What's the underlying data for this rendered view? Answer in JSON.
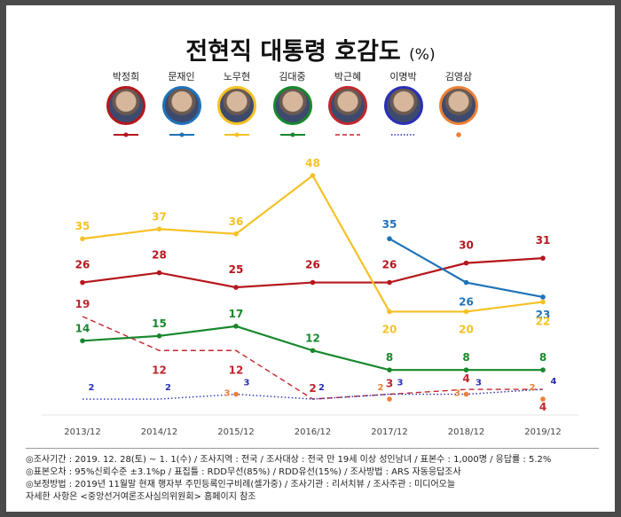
{
  "header": {
    "title": "전현직 대통령 호감도",
    "unit": "(%)"
  },
  "chart_data": {
    "type": "line",
    "x": [
      "2013/12",
      "2014/12",
      "2015/12",
      "2016/12",
      "2017/12",
      "2018/12",
      "2019/12"
    ],
    "ylim": [
      0,
      50
    ],
    "grid": false,
    "series": [
      {
        "name": "박정희",
        "color": "#b5171c",
        "style": "solid",
        "values": [
          26,
          28,
          25,
          26,
          26,
          30,
          31
        ]
      },
      {
        "name": "문재인",
        "color": "#1e73b9",
        "style": "solid",
        "values": [
          null,
          null,
          null,
          null,
          35,
          26,
          23
        ]
      },
      {
        "name": "노무현",
        "color": "#f5c125",
        "style": "solid",
        "values": [
          35,
          37,
          36,
          48,
          20,
          20,
          22
        ]
      },
      {
        "name": "김대중",
        "color": "#17882c",
        "style": "solid",
        "values": [
          14,
          15,
          17,
          12,
          8,
          8,
          8
        ]
      },
      {
        "name": "박근혜",
        "color": "#c0272d",
        "style": "dashed",
        "values": [
          19,
          12,
          12,
          2,
          3,
          4,
          4
        ]
      },
      {
        "name": "이명박",
        "color": "#2a2fb6",
        "style": "dotted",
        "values": [
          2,
          2,
          3,
          2,
          3,
          3,
          4
        ]
      },
      {
        "name": "김영삼",
        "color": "#ec8036",
        "style": "dots",
        "values": [
          null,
          null,
          3,
          null,
          2,
          3,
          2
        ]
      }
    ]
  },
  "notes": [
    "◎조사기간 : 2019. 12. 28(토) ~ 1. 1(수) / 조사지역 : 전국 / 조사대상 : 전국 만 19세 이상 성인남녀 / 표본수 : 1,000명 / 응답률 : 5.2%",
    "◎표본오차 : 95%신뢰수준 ±3.1%p  / 표집틀 : RDD무선(85%) / RDD유선(15%) / 조사방법 : ARS 자동응답조사",
    "◎보정방법 : 2019년 11월말 현재 행자부 주민등록인구비례(셀가중) / 조사기관 : 리서치뷰 / 조사주관 : 미디어오늘",
    "자세한 사항은 <중앙선거여론조사심의위원회> 홈페이지 참조"
  ]
}
